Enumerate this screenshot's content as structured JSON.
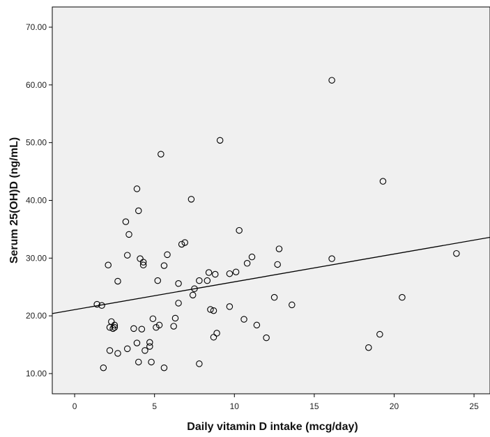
{
  "chart_data": {
    "type": "scatter",
    "xlabel": "Daily vitamin D intake (mcg/day)",
    "ylabel": "Serum 25(OH)D (ng/mL)",
    "xlim": [
      -1.4,
      26.0
    ],
    "ylim": [
      6.5,
      73.5
    ],
    "xticks": [
      0,
      5,
      10,
      15,
      20,
      25
    ],
    "yticks": [
      10.0,
      20.0,
      30.0,
      40.0,
      50.0,
      60.0,
      70.0
    ],
    "ytick_labels": [
      "10.00",
      "20.00",
      "30.00",
      "40.00",
      "50.00",
      "60.00",
      "70.00"
    ],
    "xtick_labels": [
      "0",
      "5",
      "10",
      "15",
      "20",
      "25"
    ],
    "grid": false,
    "legend": "none",
    "colors": {
      "plot_bg": "#f0f0f0",
      "marker": "#000000",
      "line": "#000000"
    },
    "points": [
      {
        "x": 1.4,
        "y": 22.0
      },
      {
        "x": 1.7,
        "y": 21.8
      },
      {
        "x": 1.8,
        "y": 11.0
      },
      {
        "x": 2.1,
        "y": 28.8
      },
      {
        "x": 2.2,
        "y": 18.0
      },
      {
        "x": 2.2,
        "y": 14.0
      },
      {
        "x": 2.3,
        "y": 19.0
      },
      {
        "x": 2.4,
        "y": 17.8
      },
      {
        "x": 2.5,
        "y": 18.4
      },
      {
        "x": 2.5,
        "y": 18.0
      },
      {
        "x": 2.7,
        "y": 26.0
      },
      {
        "x": 2.7,
        "y": 13.5
      },
      {
        "x": 3.2,
        "y": 36.3
      },
      {
        "x": 3.3,
        "y": 30.5
      },
      {
        "x": 3.3,
        "y": 14.3
      },
      {
        "x": 3.4,
        "y": 34.1
      },
      {
        "x": 3.7,
        "y": 17.8
      },
      {
        "x": 3.9,
        "y": 42.0
      },
      {
        "x": 3.9,
        "y": 15.3
      },
      {
        "x": 4.0,
        "y": 38.2
      },
      {
        "x": 4.0,
        "y": 12.0
      },
      {
        "x": 4.1,
        "y": 29.9
      },
      {
        "x": 4.2,
        "y": 17.7
      },
      {
        "x": 4.3,
        "y": 29.3
      },
      {
        "x": 4.3,
        "y": 28.8
      },
      {
        "x": 4.4,
        "y": 14.0
      },
      {
        "x": 4.7,
        "y": 15.4
      },
      {
        "x": 4.7,
        "y": 14.7
      },
      {
        "x": 4.8,
        "y": 12.0
      },
      {
        "x": 4.9,
        "y": 19.5
      },
      {
        "x": 5.1,
        "y": 18.0
      },
      {
        "x": 5.2,
        "y": 26.1
      },
      {
        "x": 5.3,
        "y": 18.4
      },
      {
        "x": 5.4,
        "y": 48.0
      },
      {
        "x": 5.6,
        "y": 28.7
      },
      {
        "x": 5.6,
        "y": 11.0
      },
      {
        "x": 5.8,
        "y": 30.6
      },
      {
        "x": 6.2,
        "y": 18.2
      },
      {
        "x": 6.3,
        "y": 19.6
      },
      {
        "x": 6.5,
        "y": 25.6
      },
      {
        "x": 6.5,
        "y": 22.2
      },
      {
        "x": 6.7,
        "y": 32.4
      },
      {
        "x": 6.9,
        "y": 32.7
      },
      {
        "x": 7.3,
        "y": 40.2
      },
      {
        "x": 7.4,
        "y": 23.6
      },
      {
        "x": 7.5,
        "y": 24.7
      },
      {
        "x": 7.8,
        "y": 26.1
      },
      {
        "x": 7.8,
        "y": 11.7
      },
      {
        "x": 8.3,
        "y": 26.1
      },
      {
        "x": 8.4,
        "y": 27.5
      },
      {
        "x": 8.5,
        "y": 21.1
      },
      {
        "x": 8.7,
        "y": 20.9
      },
      {
        "x": 8.7,
        "y": 16.3
      },
      {
        "x": 8.8,
        "y": 27.2
      },
      {
        "x": 8.9,
        "y": 17.0
      },
      {
        "x": 9.1,
        "y": 50.4
      },
      {
        "x": 9.7,
        "y": 27.3
      },
      {
        "x": 9.7,
        "y": 21.6
      },
      {
        "x": 10.1,
        "y": 27.6
      },
      {
        "x": 10.3,
        "y": 34.8
      },
      {
        "x": 10.6,
        "y": 19.4
      },
      {
        "x": 10.8,
        "y": 29.1
      },
      {
        "x": 11.1,
        "y": 30.2
      },
      {
        "x": 11.4,
        "y": 18.4
      },
      {
        "x": 12.0,
        "y": 16.2
      },
      {
        "x": 12.5,
        "y": 23.2
      },
      {
        "x": 12.7,
        "y": 28.9
      },
      {
        "x": 12.8,
        "y": 31.6
      },
      {
        "x": 13.6,
        "y": 21.9
      },
      {
        "x": 16.1,
        "y": 60.8
      },
      {
        "x": 16.1,
        "y": 29.9
      },
      {
        "x": 18.4,
        "y": 14.5
      },
      {
        "x": 19.1,
        "y": 16.8
      },
      {
        "x": 19.3,
        "y": 43.3
      },
      {
        "x": 20.5,
        "y": 23.2
      },
      {
        "x": 23.9,
        "y": 30.8
      }
    ],
    "fit_line": {
      "x": [
        -1.4,
        26.0
      ],
      "y": [
        20.4,
        33.6
      ]
    }
  }
}
